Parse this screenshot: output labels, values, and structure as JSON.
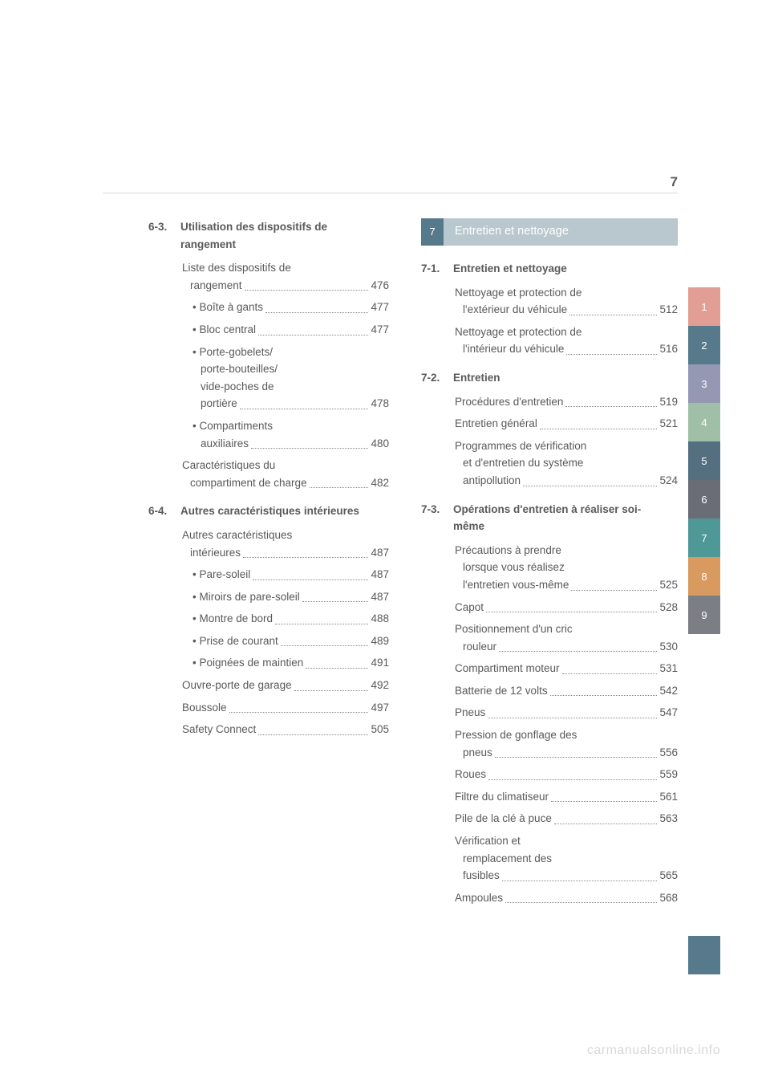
{
  "pageNumber": "7",
  "left": {
    "sections": [
      {
        "num": "6-3.",
        "title": "Utilisation des dispositifs de rangement",
        "entries": [
          {
            "lines": [
              "Liste des dispositifs de",
              "rangement"
            ],
            "page": "476",
            "sub": false
          },
          {
            "lines": [
              "Boîte à gants"
            ],
            "page": "477",
            "sub": true
          },
          {
            "lines": [
              "Bloc central"
            ],
            "page": "477",
            "sub": true
          },
          {
            "lines": [
              "Porte-gobelets/",
              "porte-bouteilles/",
              "vide-poches de",
              "portière"
            ],
            "page": "478",
            "sub": true
          },
          {
            "lines": [
              "Compartiments",
              "auxiliaires"
            ],
            "page": "480",
            "sub": true
          },
          {
            "lines": [
              "Caractéristiques du",
              "compartiment de charge"
            ],
            "page": "482",
            "sub": false
          }
        ]
      },
      {
        "num": "6-4.",
        "title": "Autres caractéristiques intérieures",
        "entries": [
          {
            "lines": [
              "Autres caractéristiques",
              "intérieures"
            ],
            "page": "487",
            "sub": false
          },
          {
            "lines": [
              "Pare-soleil"
            ],
            "page": "487",
            "sub": true
          },
          {
            "lines": [
              "Miroirs de pare-soleil"
            ],
            "page": "487",
            "sub": true
          },
          {
            "lines": [
              "Montre de bord"
            ],
            "page": "488",
            "sub": true
          },
          {
            "lines": [
              "Prise de courant"
            ],
            "page": "489",
            "sub": true
          },
          {
            "lines": [
              "Poignées de maintien"
            ],
            "page": "491",
            "sub": true
          },
          {
            "lines": [
              "Ouvre-porte de garage"
            ],
            "page": "492",
            "sub": false
          },
          {
            "lines": [
              "Boussole"
            ],
            "page": "497",
            "sub": false
          },
          {
            "lines": [
              "Safety Connect"
            ],
            "page": "505",
            "sub": false
          }
        ]
      }
    ]
  },
  "right": {
    "chapter": {
      "num": "7",
      "title": "Entretien et nettoyage"
    },
    "sections": [
      {
        "num": "7-1.",
        "title": "Entretien et nettoyage",
        "entries": [
          {
            "lines": [
              "Nettoyage et protection de",
              "l'extérieur du véhicule"
            ],
            "page": "512",
            "sub": false
          },
          {
            "lines": [
              "Nettoyage et protection de",
              "l'intérieur du véhicule"
            ],
            "page": "516",
            "sub": false
          }
        ]
      },
      {
        "num": "7-2.",
        "title": "Entretien",
        "entries": [
          {
            "lines": [
              "Procédures d'entretien"
            ],
            "page": "519",
            "sub": false
          },
          {
            "lines": [
              "Entretien général"
            ],
            "page": "521",
            "sub": false
          },
          {
            "lines": [
              "Programmes de vérification",
              "et d'entretien du système",
              "antipollution"
            ],
            "page": "524",
            "sub": false
          }
        ]
      },
      {
        "num": "7-3.",
        "title": "Opérations d'entretien à réaliser soi-même",
        "entries": [
          {
            "lines": [
              "Précautions à prendre",
              "lorsque vous réalisez",
              "l'entretien vous-même"
            ],
            "page": "525",
            "sub": false
          },
          {
            "lines": [
              "Capot"
            ],
            "page": "528",
            "sub": false
          },
          {
            "lines": [
              "Positionnement d'un cric",
              "rouleur"
            ],
            "page": "530",
            "sub": false
          },
          {
            "lines": [
              "Compartiment moteur"
            ],
            "page": "531",
            "sub": false
          },
          {
            "lines": [
              "Batterie de 12 volts"
            ],
            "page": "542",
            "sub": false
          },
          {
            "lines": [
              "Pneus"
            ],
            "page": "547",
            "sub": false
          },
          {
            "lines": [
              "Pression de gonflage des",
              "pneus"
            ],
            "page": "556",
            "sub": false
          },
          {
            "lines": [
              "Roues"
            ],
            "page": "559",
            "sub": false
          },
          {
            "lines": [
              "Filtre du climatiseur"
            ],
            "page": "561",
            "sub": false
          },
          {
            "lines": [
              "Pile de la clé à puce"
            ],
            "page": "563",
            "sub": false
          },
          {
            "lines": [
              "Vérification et",
              "remplacement des",
              "fusibles"
            ],
            "page": "565",
            "sub": false
          },
          {
            "lines": [
              "Ampoules"
            ],
            "page": "568",
            "sub": false
          }
        ]
      }
    ]
  },
  "tabs": [
    {
      "label": "1",
      "color": "#e29e94"
    },
    {
      "label": "2",
      "color": "#56798b"
    },
    {
      "label": "3",
      "color": "#9498b2"
    },
    {
      "label": "4",
      "color": "#a0bfa7"
    },
    {
      "label": "5",
      "color": "#546f80"
    },
    {
      "label": "6",
      "color": "#6b6d76"
    },
    {
      "label": "7",
      "color": "#4e9898"
    },
    {
      "label": "8",
      "color": "#d89a5e"
    },
    {
      "label": "9",
      "color": "#7b7e85"
    }
  ],
  "watermark": "carmanualsonline.info",
  "colors": {
    "banner_badge": "#56798b",
    "banner_bar": "#b9c7ce",
    "rule": "#cfdbe3"
  }
}
